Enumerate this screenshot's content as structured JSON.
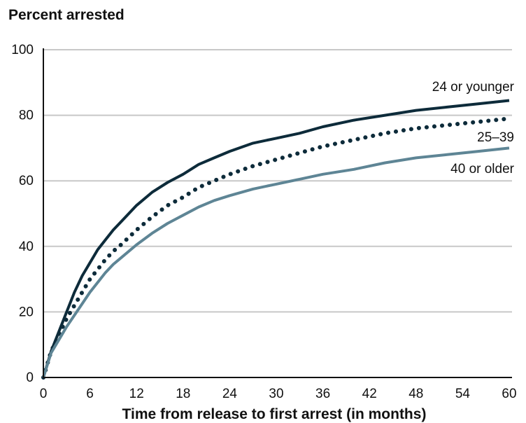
{
  "chart_data": {
    "type": "line",
    "title": "",
    "ylabel": "Percent arrested",
    "xlabel": "Time from release to first arrest (in months)",
    "xlim": [
      0,
      60
    ],
    "ylim": [
      0,
      100
    ],
    "xticks": [
      0,
      6,
      12,
      18,
      24,
      30,
      36,
      42,
      48,
      54,
      60
    ],
    "yticks": [
      0,
      20,
      40,
      60,
      80,
      100
    ],
    "grid": true,
    "legend": "inline-right",
    "x": [
      0,
      1,
      2,
      3,
      4,
      5,
      6,
      7,
      8,
      9,
      10,
      12,
      14,
      16,
      18,
      20,
      22,
      24,
      27,
      30,
      33,
      36,
      40,
      44,
      48,
      52,
      56,
      60
    ],
    "series": [
      {
        "name": "24 or younger",
        "color": "#0d2b3a",
        "style": "solid",
        "values": [
          0,
          8,
          14,
          20,
          26,
          31,
          35,
          39,
          42,
          45,
          47.5,
          52.5,
          56.5,
          59.5,
          62,
          65,
          67,
          69,
          71.5,
          73,
          74.5,
          76.5,
          78.5,
          80,
          81.5,
          82.5,
          83.5,
          84.5
        ]
      },
      {
        "name": "25–39",
        "color": "#0d2b3a",
        "style": "dotted",
        "values": [
          0,
          8,
          13,
          18,
          22,
          26,
          30,
          33,
          36,
          38.5,
          40.5,
          45,
          49,
          52.5,
          55,
          58,
          60,
          62,
          64.5,
          66.5,
          68.5,
          70.5,
          72.5,
          74.5,
          76,
          77,
          78,
          79
        ]
      },
      {
        "name": "40 or older",
        "color": "#5e8595",
        "style": "solid",
        "values": [
          0,
          7.5,
          11.5,
          15.5,
          19,
          22.5,
          26,
          29,
          32,
          34.5,
          36.5,
          40.5,
          44,
          47,
          49.5,
          52,
          54,
          55.5,
          57.5,
          59,
          60.5,
          62,
          63.5,
          65.5,
          67,
          68,
          69,
          70
        ]
      }
    ]
  }
}
